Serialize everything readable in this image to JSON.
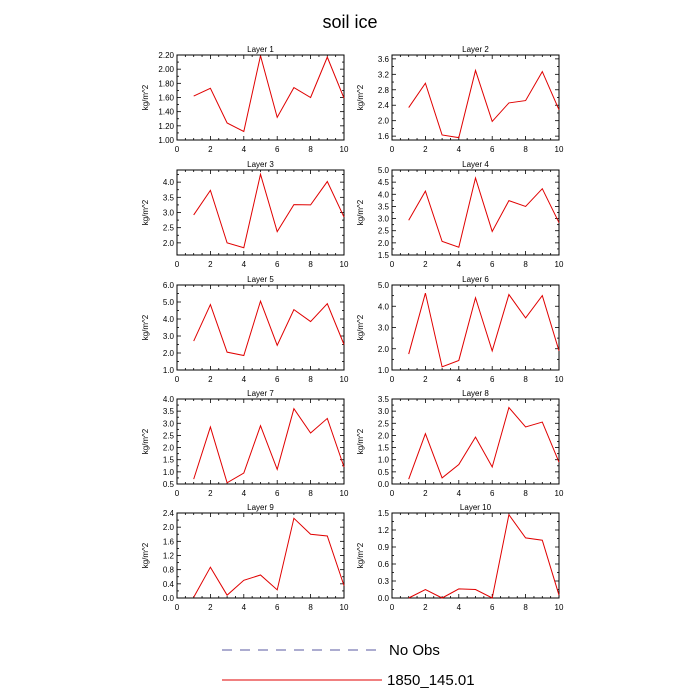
{
  "title": "soil ice",
  "legend": [
    {
      "label": "No Obs",
      "color": "#5a5aa0",
      "dash": true
    },
    {
      "label": "1850_145.01",
      "color": "#e00000",
      "dash": false
    }
  ],
  "chart_data": [
    {
      "type": "line",
      "title": "Layer 1",
      "ylabel": "kg/m^2",
      "xlim": [
        0,
        10
      ],
      "xticks": [
        0,
        2,
        4,
        6,
        8,
        10
      ],
      "ylim": [
        1.0,
        2.2
      ],
      "yticks": [
        "1.00",
        "1.20",
        "1.40",
        "1.60",
        "1.80",
        "2.00",
        "2.20"
      ],
      "series": [
        {
          "name": "1850_145.01",
          "color": "#e00000",
          "x": [
            1,
            2,
            3,
            4,
            5,
            6,
            7,
            8,
            9,
            10
          ],
          "values": [
            1.62,
            1.73,
            1.24,
            1.12,
            2.19,
            1.32,
            1.74,
            1.6,
            2.17,
            1.59
          ]
        }
      ]
    },
    {
      "type": "line",
      "title": "Layer 2",
      "ylabel": "kg/m^2",
      "xlim": [
        0,
        10
      ],
      "xticks": [
        0,
        2,
        4,
        6,
        8,
        10
      ],
      "ylim": [
        1.5,
        3.7
      ],
      "yticks": [
        "1.6",
        "2.0",
        "2.4",
        "2.8",
        "3.2",
        "3.6"
      ],
      "series": [
        {
          "name": "1850_145.01",
          "color": "#e00000",
          "x": [
            1,
            2,
            3,
            4,
            5,
            6,
            7,
            8,
            9,
            10
          ],
          "values": [
            2.34,
            2.97,
            1.63,
            1.56,
            3.3,
            1.98,
            2.46,
            2.52,
            3.27,
            2.28
          ]
        }
      ]
    },
    {
      "type": "line",
      "title": "Layer 3",
      "ylabel": "kg/m^2",
      "xlim": [
        0,
        10
      ],
      "xticks": [
        0,
        2,
        4,
        6,
        8,
        10
      ],
      "ylim": [
        1.6,
        4.4
      ],
      "yticks": [
        "2.0",
        "2.5",
        "3.0",
        "3.5",
        "4.0"
      ],
      "series": [
        {
          "name": "1850_145.01",
          "color": "#e00000",
          "x": [
            1,
            2,
            3,
            4,
            5,
            6,
            7,
            8,
            9,
            10
          ],
          "values": [
            2.92,
            3.73,
            2.0,
            1.84,
            4.26,
            2.37,
            3.26,
            3.25,
            4.02,
            2.85
          ]
        }
      ]
    },
    {
      "type": "line",
      "title": "Layer 4",
      "ylabel": "kg/m^2",
      "xlim": [
        0,
        10
      ],
      "xticks": [
        0,
        2,
        4,
        6,
        8,
        10
      ],
      "ylim": [
        1.5,
        5.0
      ],
      "yticks": [
        "1.5",
        "2.0",
        "2.5",
        "3.0",
        "3.5",
        "4.0",
        "4.5",
        "5.0"
      ],
      "series": [
        {
          "name": "1850_145.01",
          "color": "#e00000",
          "x": [
            1,
            2,
            3,
            4,
            5,
            6,
            7,
            8,
            9,
            10
          ],
          "values": [
            2.93,
            4.13,
            2.06,
            1.82,
            4.67,
            2.47,
            3.74,
            3.5,
            4.23,
            2.83
          ]
        }
      ]
    },
    {
      "type": "line",
      "title": "Layer 5",
      "ylabel": "kg/m^2",
      "xlim": [
        0,
        10
      ],
      "xticks": [
        0,
        2,
        4,
        6,
        8,
        10
      ],
      "ylim": [
        1.0,
        6.0
      ],
      "yticks": [
        "1.0",
        "2.0",
        "3.0",
        "4.0",
        "5.0",
        "6.0"
      ],
      "series": [
        {
          "name": "1850_145.01",
          "color": "#e00000",
          "x": [
            1,
            2,
            3,
            4,
            5,
            6,
            7,
            8,
            9,
            10
          ],
          "values": [
            2.7,
            4.85,
            2.05,
            1.85,
            5.05,
            2.45,
            4.55,
            3.85,
            4.9,
            2.5
          ]
        }
      ]
    },
    {
      "type": "line",
      "title": "Layer 6",
      "ylabel": "kg/m^2",
      "xlim": [
        0,
        10
      ],
      "xticks": [
        0,
        2,
        4,
        6,
        8,
        10
      ],
      "ylim": [
        1.0,
        5.0
      ],
      "yticks": [
        "1.0",
        "2.0",
        "3.0",
        "4.0",
        "5.0"
      ],
      "series": [
        {
          "name": "1850_145.01",
          "color": "#e00000",
          "x": [
            1,
            2,
            3,
            4,
            5,
            6,
            7,
            8,
            9,
            10
          ],
          "values": [
            1.75,
            4.62,
            1.15,
            1.45,
            4.4,
            1.9,
            4.55,
            3.45,
            4.5,
            1.9
          ]
        }
      ]
    },
    {
      "type": "line",
      "title": "Layer 7",
      "ylabel": "kg/m^2",
      "xlim": [
        0,
        10
      ],
      "xticks": [
        0,
        2,
        4,
        6,
        8,
        10
      ],
      "ylim": [
        0.5,
        4.0
      ],
      "yticks": [
        "0.5",
        "1.0",
        "1.5",
        "2.0",
        "2.5",
        "3.0",
        "3.5",
        "4.0"
      ],
      "series": [
        {
          "name": "1850_145.01",
          "color": "#e00000",
          "x": [
            1,
            2,
            3,
            4,
            5,
            6,
            7,
            8,
            9,
            10
          ],
          "values": [
            0.7,
            2.85,
            0.55,
            0.95,
            2.9,
            1.1,
            3.6,
            2.6,
            3.2,
            1.2
          ]
        }
      ]
    },
    {
      "type": "line",
      "title": "Layer 8",
      "ylabel": "kg/m^2",
      "xlim": [
        0,
        10
      ],
      "xticks": [
        0,
        2,
        4,
        6,
        8,
        10
      ],
      "ylim": [
        0.0,
        3.5
      ],
      "yticks": [
        "0.0",
        "0.5",
        "1.0",
        "1.5",
        "2.0",
        "2.5",
        "3.0",
        "3.5"
      ],
      "series": [
        {
          "name": "1850_145.01",
          "color": "#e00000",
          "x": [
            1,
            2,
            3,
            4,
            5,
            6,
            7,
            8,
            9,
            10
          ],
          "values": [
            0.2,
            2.07,
            0.25,
            0.8,
            1.93,
            0.7,
            3.15,
            2.35,
            2.55,
            0.9
          ]
        }
      ]
    },
    {
      "type": "line",
      "title": "Layer 9",
      "ylabel": "kg/m^2",
      "xlim": [
        0,
        10
      ],
      "xticks": [
        0,
        2,
        4,
        6,
        8,
        10
      ],
      "ylim": [
        0.0,
        2.4
      ],
      "yticks": [
        "0.0",
        "0.4",
        "0.8",
        "1.2",
        "1.6",
        "2.0",
        "2.4"
      ],
      "series": [
        {
          "name": "1850_145.01",
          "color": "#e00000",
          "x": [
            1,
            2,
            3,
            4,
            5,
            6,
            7,
            8,
            9,
            10
          ],
          "values": [
            0.02,
            0.87,
            0.08,
            0.5,
            0.65,
            0.23,
            2.25,
            1.8,
            1.75,
            0.35
          ]
        }
      ]
    },
    {
      "type": "line",
      "title": "Layer 10",
      "ylabel": "kg/m^2",
      "xlim": [
        0,
        10
      ],
      "xticks": [
        0,
        2,
        4,
        6,
        8,
        10
      ],
      "ylim": [
        0.0,
        1.5
      ],
      "yticks": [
        "0.0",
        "0.3",
        "0.6",
        "0.9",
        "1.2",
        "1.5"
      ],
      "series": [
        {
          "name": "1850_145.01",
          "color": "#e00000",
          "x": [
            1,
            2,
            3,
            4,
            5,
            6,
            7,
            8,
            9,
            10
          ],
          "values": [
            0.0,
            0.15,
            0.0,
            0.16,
            0.15,
            0.0,
            1.47,
            1.06,
            1.02,
            0.05
          ]
        }
      ]
    }
  ]
}
